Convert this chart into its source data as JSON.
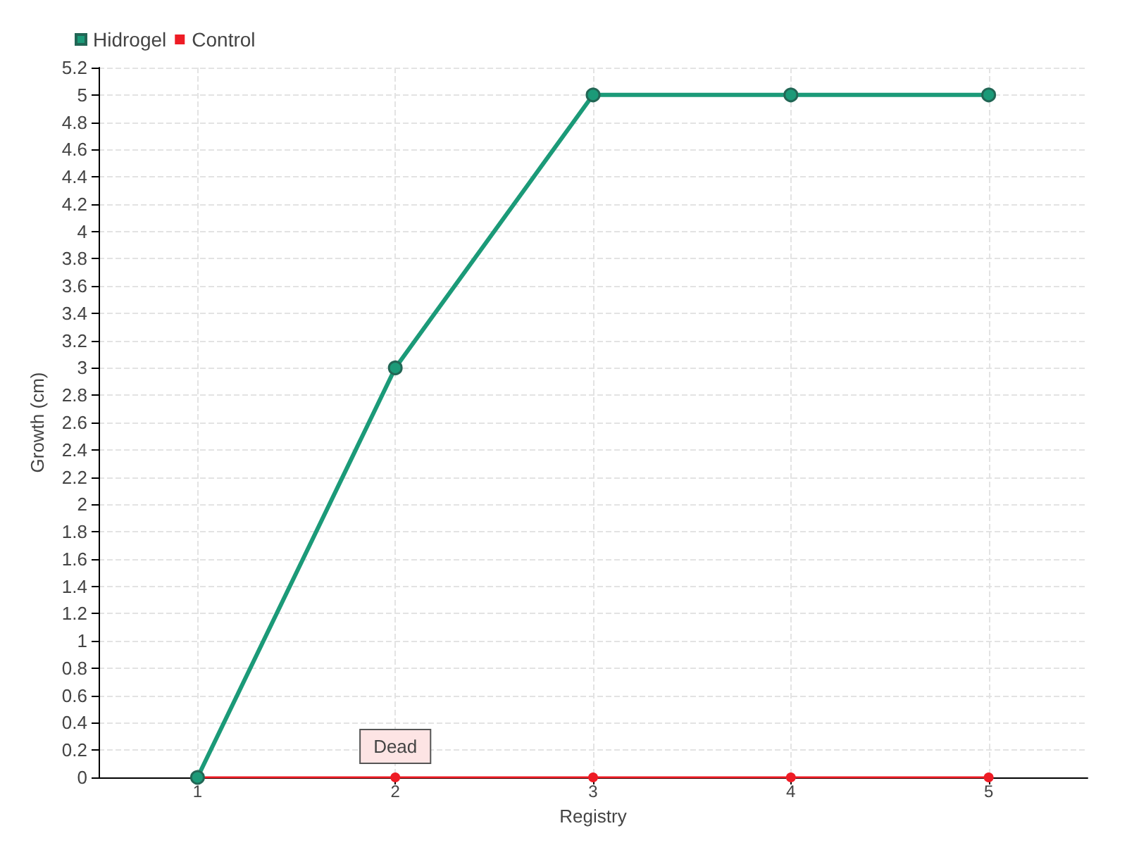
{
  "chart_data": {
    "type": "line",
    "xlabel": "Registry",
    "ylabel": "Growth (cm)",
    "x": [
      1,
      2,
      3,
      4,
      5
    ],
    "xlim": [
      0.5,
      5.5
    ],
    "xticks": [
      1,
      2,
      3,
      4,
      5
    ],
    "ylim": [
      0,
      5.2
    ],
    "yticks": [
      0,
      0.2,
      0.4,
      0.6,
      0.8,
      1,
      1.2,
      1.4,
      1.6,
      1.8,
      2,
      2.2,
      2.4,
      2.6,
      2.8,
      3,
      3.2,
      3.4,
      3.6,
      3.8,
      4,
      4.2,
      4.4,
      4.6,
      4.8,
      5,
      5.2
    ],
    "series": [
      {
        "name": "Hidrogel",
        "color": "#1b9a78",
        "values": [
          0,
          3,
          5,
          5,
          5
        ]
      },
      {
        "name": "Control",
        "color": "#ee1c25",
        "values": [
          0,
          0,
          0,
          0,
          0
        ]
      }
    ],
    "annotations": [
      {
        "text": "Dead",
        "x": 2,
        "y": 0
      }
    ],
    "grid": true,
    "legend": "top left",
    "marker": "circle",
    "line_style": "solid"
  }
}
